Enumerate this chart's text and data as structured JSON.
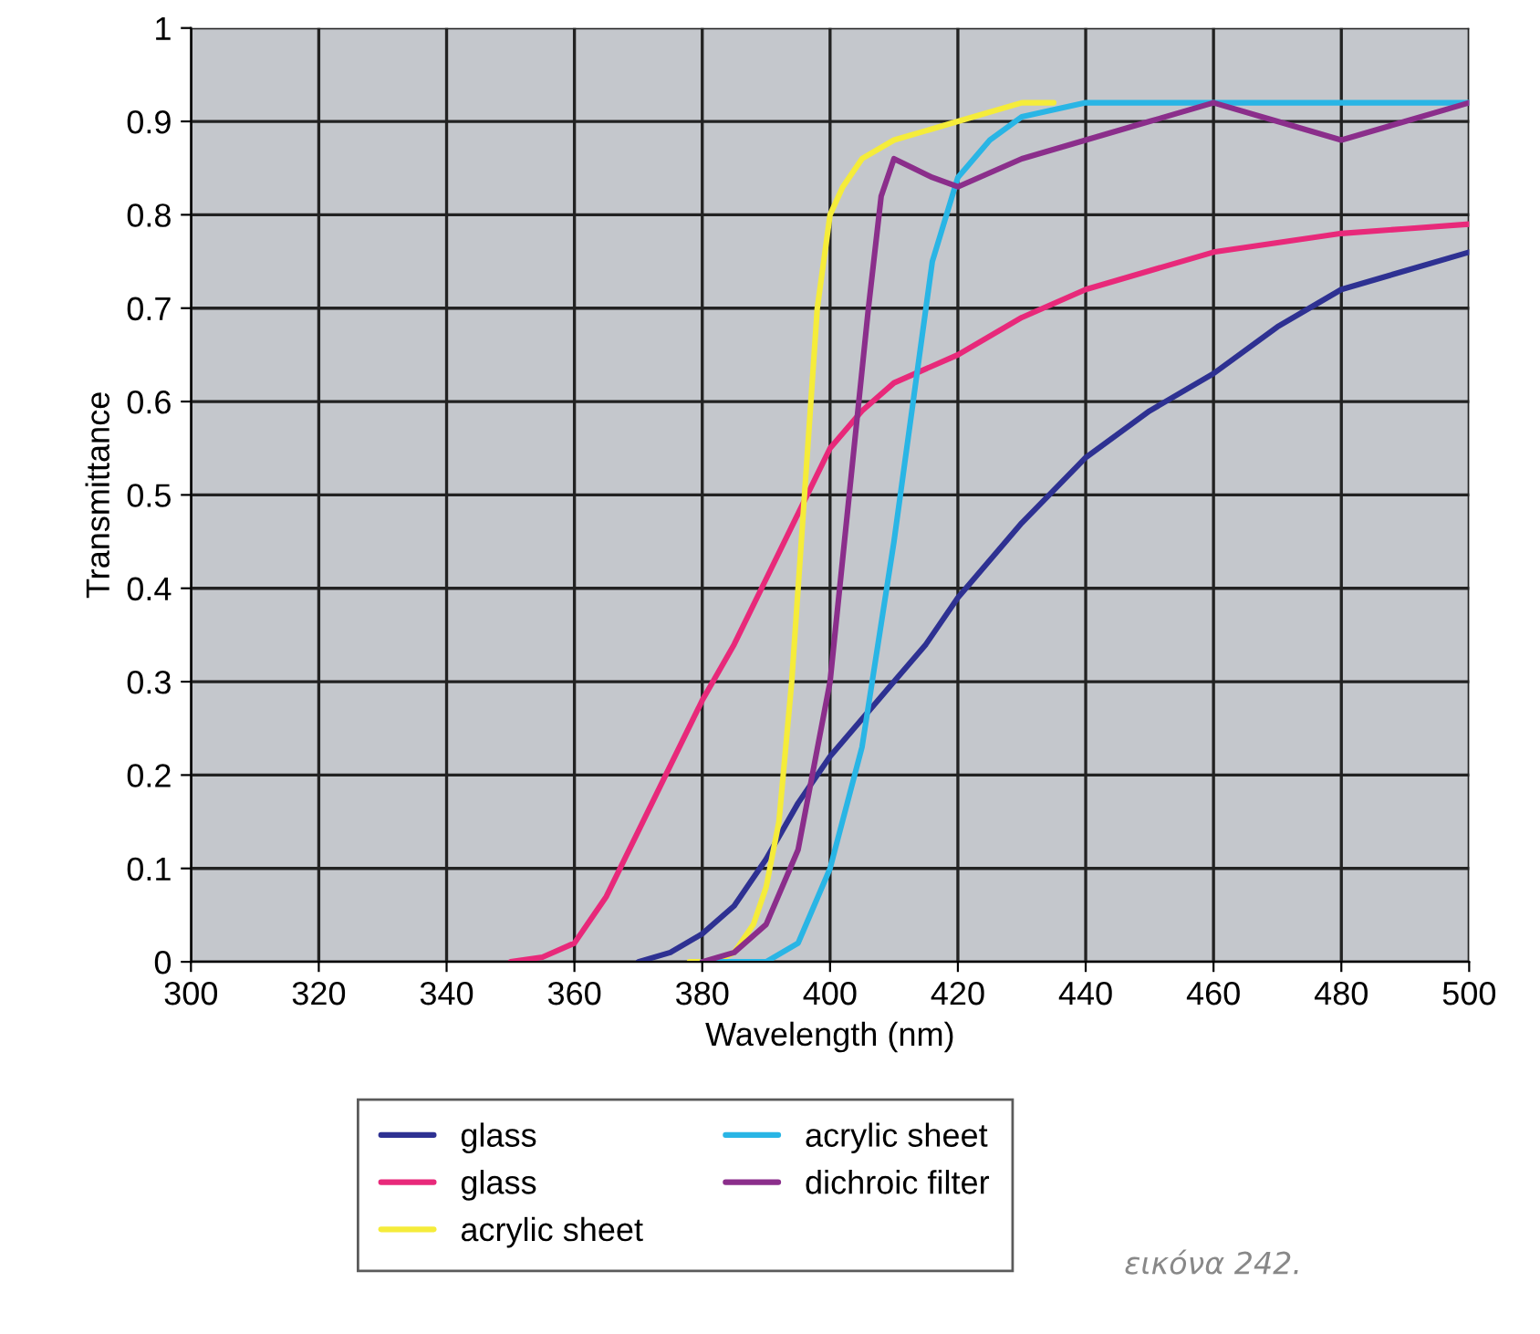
{
  "chart_data": {
    "type": "line",
    "xlabel": "Wavelength (nm)",
    "ylabel": "Transmittance",
    "xlim": [
      300,
      500
    ],
    "xticks": [
      300,
      320,
      340,
      360,
      380,
      400,
      420,
      440,
      460,
      480,
      500
    ],
    "ylim": [
      0,
      1
    ],
    "yticks": [
      0,
      0.1,
      0.2,
      0.3,
      0.4,
      0.5,
      0.6,
      0.7,
      0.8,
      0.9,
      1
    ],
    "grid": true,
    "legend": "bottom",
    "marker": "none",
    "line_style": "solid",
    "annotations": [
      "εικόνα 242."
    ],
    "series": [
      {
        "name": "glass",
        "color": "#2e3192",
        "x": [
          370,
          375,
          380,
          385,
          390,
          395,
          400,
          405,
          410,
          415,
          420,
          430,
          440,
          450,
          460,
          470,
          480,
          490,
          500
        ],
        "values": [
          0,
          0.01,
          0.03,
          0.06,
          0.11,
          0.17,
          0.22,
          0.26,
          0.3,
          0.34,
          0.39,
          0.47,
          0.54,
          0.59,
          0.63,
          0.68,
          0.72,
          0.74,
          0.76
        ]
      },
      {
        "name": "glass",
        "color": "#e8297a",
        "x": [
          350,
          355,
          360,
          365,
          370,
          375,
          380,
          385,
          390,
          395,
          400,
          405,
          410,
          420,
          430,
          440,
          450,
          460,
          470,
          480,
          490,
          500
        ],
        "values": [
          0,
          0.005,
          0.02,
          0.07,
          0.14,
          0.21,
          0.28,
          0.34,
          0.41,
          0.48,
          0.55,
          0.59,
          0.62,
          0.65,
          0.69,
          0.72,
          0.74,
          0.76,
          0.77,
          0.78,
          0.785,
          0.79
        ]
      },
      {
        "name": "acrylic sheet",
        "color": "#f5ec3a",
        "x": [
          378,
          382,
          385,
          388,
          390,
          392,
          394,
          396,
          398,
          400,
          402,
          405,
          410,
          420,
          430,
          435
        ],
        "values": [
          0,
          0,
          0.01,
          0.04,
          0.08,
          0.15,
          0.3,
          0.5,
          0.7,
          0.8,
          0.83,
          0.86,
          0.88,
          0.9,
          0.92,
          0.92
        ]
      },
      {
        "name": "acrylic sheet",
        "color": "#29b5e5",
        "x": [
          380,
          385,
          390,
          395,
          400,
          405,
          410,
          413,
          416,
          420,
          425,
          430,
          440,
          450,
          500
        ],
        "values": [
          0,
          0,
          0,
          0.02,
          0.1,
          0.23,
          0.45,
          0.6,
          0.75,
          0.84,
          0.88,
          0.905,
          0.92,
          0.92,
          0.92
        ]
      },
      {
        "name": "dichroic filter",
        "color": "#8b2e8b",
        "x": [
          380,
          385,
          390,
          395,
          400,
          403,
          406,
          408,
          410,
          413,
          416,
          420,
          430,
          440,
          450,
          460,
          470,
          480,
          490,
          500
        ],
        "values": [
          0,
          0.01,
          0.04,
          0.12,
          0.3,
          0.5,
          0.7,
          0.82,
          0.86,
          0.85,
          0.84,
          0.83,
          0.86,
          0.88,
          0.9,
          0.92,
          0.9,
          0.88,
          0.9,
          0.92
        ]
      }
    ]
  }
}
